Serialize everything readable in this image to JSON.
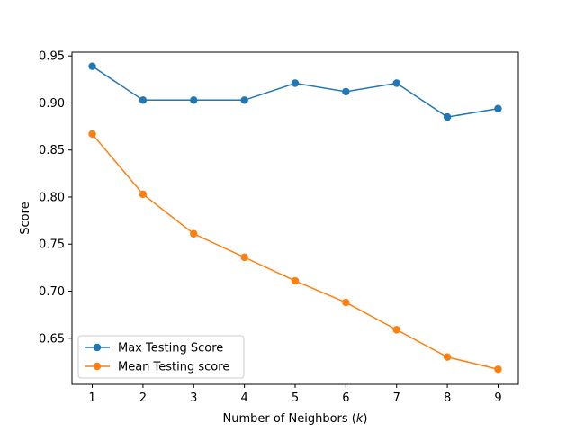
{
  "chart_data": {
    "type": "line",
    "title": "",
    "xlabel": "Number of Neighbors (k)",
    "xlabel_parts": {
      "prefix": "Number of Neighbors (",
      "var": "k",
      "suffix": ")"
    },
    "ylabel": "Score",
    "xlim": [
      0.6,
      9.4
    ],
    "ylim": [
      0.601,
      0.954
    ],
    "x_ticks": [
      1,
      2,
      3,
      4,
      5,
      6,
      7,
      8,
      9
    ],
    "y_ticks": [
      0.65,
      0.7,
      0.75,
      0.8,
      0.85,
      0.9,
      0.95
    ],
    "y_tick_labels": [
      "0.65",
      "0.70",
      "0.75",
      "0.80",
      "0.85",
      "0.90",
      "0.95"
    ],
    "grid": false,
    "legend_position": "lower-left",
    "x": [
      1,
      2,
      3,
      4,
      5,
      6,
      7,
      8,
      9
    ],
    "series": [
      {
        "name": "Max Testing Score",
        "color": "#1f77b4",
        "marker": "circle",
        "values": [
          0.939,
          0.903,
          0.903,
          0.903,
          0.921,
          0.912,
          0.921,
          0.885,
          0.894
        ]
      },
      {
        "name": "Mean Testing score",
        "color": "#ff7f0e",
        "marker": "circle",
        "values": [
          0.867,
          0.803,
          0.761,
          0.736,
          0.711,
          0.688,
          0.659,
          0.63,
          0.617
        ]
      }
    ]
  }
}
